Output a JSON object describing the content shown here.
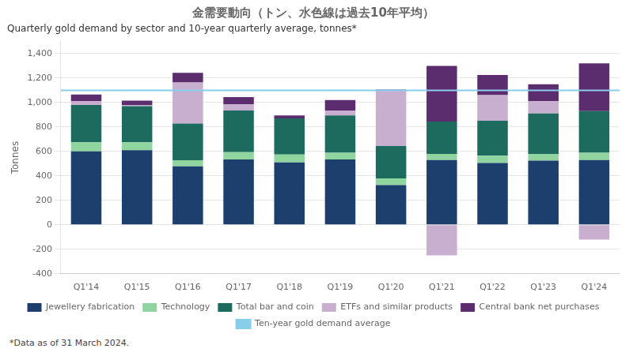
{
  "chart_data": {
    "type": "bar",
    "title": "金需要動向（トン、水色線は過去10年平均）",
    "subtitle": "Quarterly gold demand by sector and 10-year quarterly average, tonnes*",
    "footnote": "*Data as of 31 March 2024.",
    "ylabel": "Tonnes",
    "categories": [
      "Q1'14",
      "Q1'15",
      "Q1'16",
      "Q1'17",
      "Q1'18",
      "Q1'19",
      "Q1'20",
      "Q1'21",
      "Q1'22",
      "Q1'23",
      "Q1'24"
    ],
    "series": [
      {
        "name": "Jewellery fabrication",
        "color": "#1c3f6e",
        "values": [
          600,
          610,
          478,
          535,
          510,
          535,
          325,
          530,
          505,
          525,
          530
        ]
      },
      {
        "name": "Technology",
        "color": "#90d4a0",
        "values": [
          75,
          65,
          50,
          60,
          65,
          55,
          55,
          50,
          60,
          55,
          60
        ]
      },
      {
        "name": "Total bar and coin",
        "color": "#1d6b5e",
        "values": [
          305,
          295,
          300,
          340,
          295,
          305,
          265,
          265,
          285,
          330,
          340
        ]
      },
      {
        "name": "ETFs and similar products",
        "color": "#c8aecf",
        "values": [
          30,
          10,
          335,
          50,
          0,
          40,
          450,
          -250,
          210,
          100,
          -120
        ]
      },
      {
        "name": "Central bank net purchases",
        "color": "#5c2d6e",
        "values": [
          55,
          35,
          80,
          60,
          25,
          85,
          10,
          455,
          165,
          140,
          390
        ]
      }
    ],
    "reference_line": {
      "name": "Ten-year gold demand average",
      "color": "#87ceeb",
      "value": 1100
    },
    "stacked": true,
    "ylim": [
      -400,
      1500
    ],
    "yticks": [
      -400,
      -200,
      0,
      200,
      400,
      600,
      800,
      {
        "value": 1000,
        "label": "1,000"
      },
      {
        "value": 1200,
        "label": "1,200"
      },
      {
        "value": 1400,
        "label": "1,400"
      }
    ],
    "grid": true,
    "legend": "bottom"
  }
}
